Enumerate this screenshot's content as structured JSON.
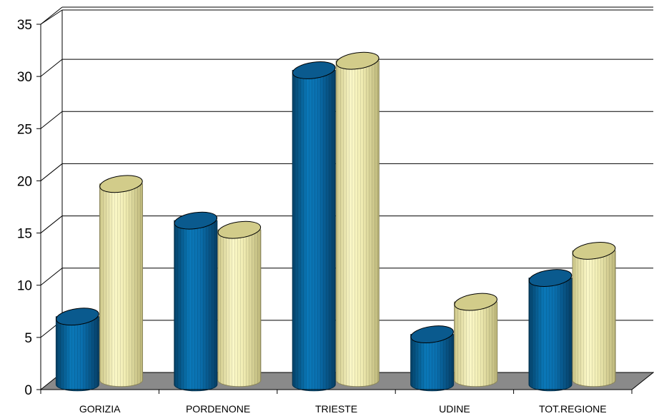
{
  "chart_data": {
    "type": "bar",
    "title": "",
    "xlabel": "",
    "ylabel": "",
    "categories": [
      "GORIZIA",
      "PORDENONE",
      "TRIESTE",
      "UDINE",
      "TOT.REGIONE"
    ],
    "series": [
      {
        "values": [
          6.5,
          15.7,
          30.1,
          4.8,
          10.2
        ]
      },
      {
        "values": [
          18.8,
          14.4,
          30.6,
          7.5,
          12.4
        ]
      }
    ],
    "ylim": [
      0,
      35
    ],
    "yticks": [
      0,
      5,
      10,
      15,
      20,
      25,
      30,
      35
    ],
    "grid": true,
    "legend": "none",
    "colors": {
      "series_1": "#0a6fae",
      "series_1_top": "#0a5a8e",
      "series_2": "#f3f0b8",
      "series_2_top": "#d2cc8a",
      "floor": "#8a8a8a",
      "gridline": "#000000"
    }
  }
}
